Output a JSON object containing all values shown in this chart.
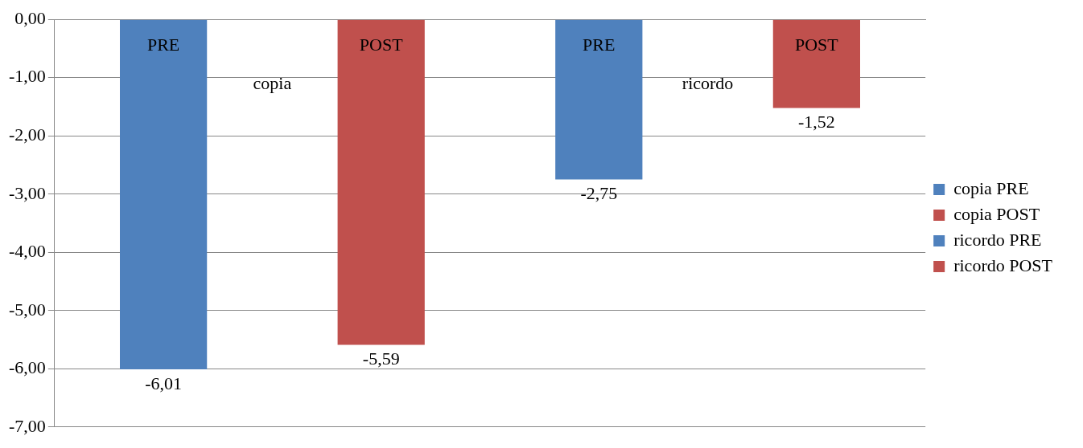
{
  "chart_data": {
    "type": "bar",
    "categories": [
      "copia",
      "ricordo"
    ],
    "series": [
      {
        "name": "copia PRE",
        "color": "#4f81bd",
        "values": [
          -6.01,
          null
        ],
        "value_labels": [
          "-6,01",
          null
        ]
      },
      {
        "name": "copia POST",
        "color": "#c0504d",
        "values": [
          -5.59,
          null
        ],
        "value_labels": [
          "-5,59",
          null
        ]
      },
      {
        "name": "ricordo PRE",
        "color": "#4f81bd",
        "values": [
          null,
          -2.75
        ],
        "value_labels": [
          null,
          "-2,75"
        ]
      },
      {
        "name": "ricordo POST",
        "color": "#c0504d",
        "values": [
          null,
          -1.52
        ],
        "value_labels": [
          null,
          "-1,52"
        ]
      }
    ],
    "annotations": [
      "PRE",
      "POST",
      "PRE",
      "POST"
    ],
    "ylim": [
      -7,
      0
    ],
    "yticks": [
      {
        "value": -7,
        "label": "-7,00"
      },
      {
        "value": -6,
        "label": "-6,00"
      },
      {
        "value": -5,
        "label": "-5,00"
      },
      {
        "value": -4,
        "label": "-4,00"
      },
      {
        "value": -3,
        "label": "-3,00"
      },
      {
        "value": -2,
        "label": "-2,00"
      },
      {
        "value": -1,
        "label": "-1,00"
      },
      {
        "value": 0,
        "label": "0,00"
      }
    ],
    "grid": "y",
    "legend": "right"
  }
}
